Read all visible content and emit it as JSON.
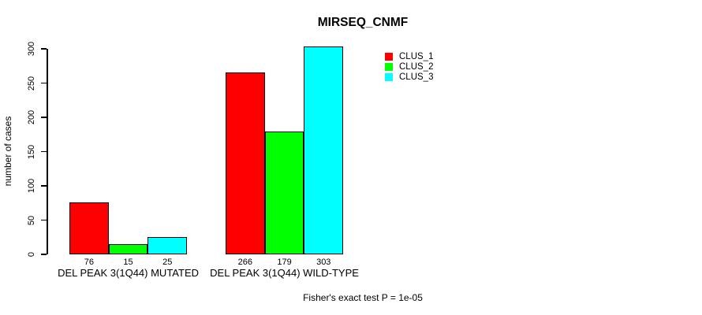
{
  "title": "MIRSEQ_CNMF",
  "footer": "Fisher's exact test P = 1e-05",
  "chart_data": {
    "type": "bar",
    "title": "MIRSEQ_CNMF",
    "xlabel": "",
    "ylabel": "number of cases",
    "ylim": [
      0,
      300
    ],
    "y_ticks": [
      0,
      50,
      100,
      150,
      200,
      250,
      300
    ],
    "categories": [
      "DEL PEAK 3(1Q44) MUTATED",
      "DEL PEAK 3(1Q44) WILD-TYPE"
    ],
    "series": [
      {
        "name": "CLUS_1",
        "color": "#ff0000",
        "values": [
          76,
          266
        ]
      },
      {
        "name": "CLUS_2",
        "color": "#00ff00",
        "values": [
          15,
          179
        ]
      },
      {
        "name": "CLUS_3",
        "color": "#00ffff",
        "values": [
          25,
          303
        ]
      }
    ],
    "bar_value_labels": [
      [
        76,
        15,
        25
      ],
      [
        266,
        179,
        303
      ]
    ],
    "legend_position": "top-right",
    "grid": false,
    "annotation": "Fisher's exact test P = 1e-05"
  }
}
